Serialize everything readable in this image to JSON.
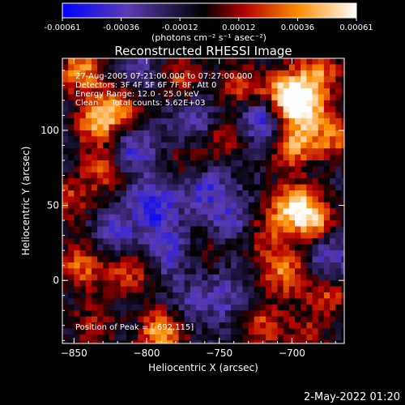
{
  "colorbar": {
    "ticks": [
      "-0.00061",
      "-0.00036",
      "-0.00012",
      "0.00012",
      "0.00036",
      "0.00061"
    ],
    "unit_label": "(photons cm⁻² s⁻¹ asec⁻²)",
    "range": [
      -0.00061,
      0.00061
    ]
  },
  "chart_data": {
    "type": "heatmap",
    "title": "Reconstructed RHESSI Image",
    "xlabel": "Heliocentric X (arcsec)",
    "ylabel": "Heliocentric Y (arcsec)",
    "xlim": [
      -858,
      -664
    ],
    "ylim": [
      -42,
      148
    ],
    "x_ticks": [
      -850,
      -800,
      -750,
      -700
    ],
    "x_tick_labels": [
      "−850",
      "−800",
      "−750",
      "−700"
    ],
    "y_ticks": [
      0,
      50,
      100
    ],
    "y_tick_labels": [
      "0",
      "50",
      "100"
    ],
    "annotations": [
      "27-Aug-2005 07:21:00.000 to 07:27:00.000",
      "Detectors: 3F 4F 5F 6F 7F 8F, Att 0",
      "Energy Range: 12.0 - 25.0 keV",
      "Clean     Total counts: 5.62E+03"
    ],
    "peak_label": "Position of Peak = [-692,115]",
    "peak": [
      -692,
      115
    ],
    "colormap": [
      "#0000ff",
      "#5a3cb4",
      "#000000",
      "#b40000",
      "#ff8c00",
      "#ffffff"
    ],
    "blobs": [
      {
        "x": -845,
        "y": 140,
        "v": 0.0005
      },
      {
        "x": -835,
        "y": 105,
        "v": 0.00045
      },
      {
        "x": -820,
        "y": 115,
        "v": 0.0004
      },
      {
        "x": -828,
        "y": 75,
        "v": 0.00038
      },
      {
        "x": -852,
        "y": 55,
        "v": 0.0003
      },
      {
        "x": -845,
        "y": 10,
        "v": 0.00042
      },
      {
        "x": -812,
        "y": 5,
        "v": 0.00035
      },
      {
        "x": -838,
        "y": -30,
        "v": 0.00025
      },
      {
        "x": -790,
        "y": -35,
        "v": 0.00055
      },
      {
        "x": -778,
        "y": 135,
        "v": 0.0003
      },
      {
        "x": -772,
        "y": 80,
        "v": 0.0002
      },
      {
        "x": -745,
        "y": 95,
        "v": 0.00028
      },
      {
        "x": -735,
        "y": 130,
        "v": 0.0003
      },
      {
        "x": -705,
        "y": 125,
        "v": 0.00055
      },
      {
        "x": -682,
        "y": 138,
        "v": 0.00045
      },
      {
        "x": -692,
        "y": 115,
        "v": 0.00061
      },
      {
        "x": -700,
        "y": 90,
        "v": 0.0005
      },
      {
        "x": -672,
        "y": 95,
        "v": 0.0004
      },
      {
        "x": -700,
        "y": 50,
        "v": 0.00055
      },
      {
        "x": -685,
        "y": 40,
        "v": 0.0005
      },
      {
        "x": -718,
        "y": 30,
        "v": 0.0003
      },
      {
        "x": -705,
        "y": 5,
        "v": 0.00045
      },
      {
        "x": -675,
        "y": -10,
        "v": 0.00035
      },
      {
        "x": -720,
        "y": -30,
        "v": 0.00035
      },
      {
        "x": -690,
        "y": -38,
        "v": 0.00025
      },
      {
        "x": -760,
        "y": 20,
        "v": 0.00015
      },
      {
        "x": -795,
        "y": 50,
        "v": -0.0004
      },
      {
        "x": -785,
        "y": 20,
        "v": -0.0003
      },
      {
        "x": -812,
        "y": 85,
        "v": -0.00035
      },
      {
        "x": -720,
        "y": 105,
        "v": -0.0004
      },
      {
        "x": -768,
        "y": 105,
        "v": -0.00025
      },
      {
        "x": -760,
        "y": 60,
        "v": -0.0003
      },
      {
        "x": -742,
        "y": 40,
        "v": -0.00025
      },
      {
        "x": -675,
        "y": 15,
        "v": -0.0003
      },
      {
        "x": -770,
        "y": -15,
        "v": -0.00015
      },
      {
        "x": -822,
        "y": 30,
        "v": -0.00025
      },
      {
        "x": -745,
        "y": -10,
        "v": -0.0002
      },
      {
        "x": -805,
        "y": 140,
        "v": -0.0002
      }
    ]
  },
  "footer": {
    "timestamp": "2-May-2022 01:20"
  }
}
